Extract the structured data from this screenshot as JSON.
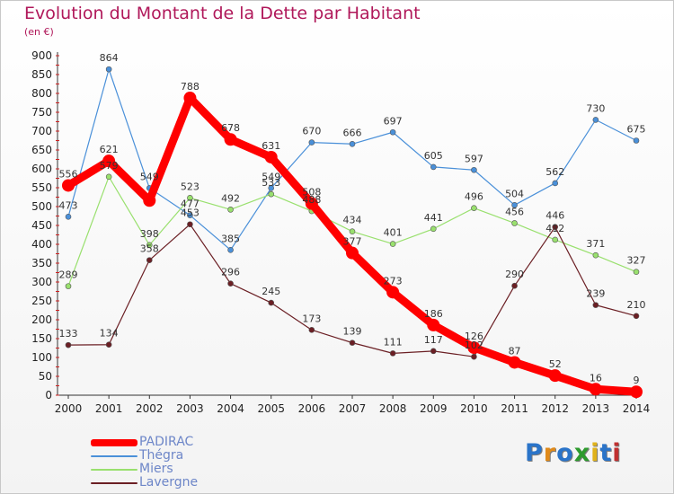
{
  "title": "Evolution du Montant de la Dette par Habitant",
  "subtitle": "(en €)",
  "logo": {
    "text": "Proxiti",
    "colors": [
      "#2a74c9",
      "#e08a1a",
      "#2a74c9",
      "#2e9b2e",
      "#e0b21a",
      "#2a74c9",
      "#c03030"
    ]
  },
  "chart_data": {
    "type": "line",
    "x": [
      "2000",
      "2001",
      "2002",
      "2003",
      "2004",
      "2005",
      "2006",
      "2007",
      "2008",
      "2009",
      "2010",
      "2011",
      "2012",
      "2013",
      "2014"
    ],
    "ylim": [
      0,
      900
    ],
    "yticks": [
      0,
      50,
      100,
      150,
      200,
      250,
      300,
      350,
      400,
      450,
      500,
      550,
      600,
      650,
      700,
      750,
      800,
      850,
      900
    ],
    "grid": false,
    "legend": "bottom-left",
    "series": [
      {
        "name": "PADIRAC",
        "color": "#ff0000",
        "width": 9,
        "marker": 7,
        "values": [
          556,
          621,
          516,
          788,
          678,
          631,
          508,
          377,
          273,
          186,
          126,
          87,
          52,
          16,
          9
        ],
        "labels": [
          "556",
          "621",
          "",
          "788",
          "678",
          "631",
          "508",
          "377",
          "273",
          "186",
          "126",
          "87",
          "52",
          "16",
          "9"
        ]
      },
      {
        "name": "Thégra",
        "color": "#4a90d9",
        "width": 1.2,
        "marker": 3,
        "values": [
          473,
          864,
          549,
          477,
          385,
          549,
          670,
          666,
          697,
          605,
          597,
          504,
          562,
          730,
          675
        ],
        "labels": [
          "473",
          "864",
          "549",
          "477",
          "385",
          "549",
          "670",
          "666",
          "697",
          "605",
          "597",
          "504",
          "562",
          "730",
          "675"
        ]
      },
      {
        "name": "Miers",
        "color": "#99e06e",
        "width": 1.2,
        "marker": 3,
        "values": [
          289,
          579,
          398,
          523,
          492,
          533,
          488,
          434,
          401,
          441,
          496,
          456,
          412,
          371,
          327
        ],
        "labels": [
          "289",
          "579",
          "398",
          "523",
          "492",
          "533",
          "488",
          "434",
          "401",
          "441",
          "496",
          "456",
          "412",
          "371",
          "327"
        ]
      },
      {
        "name": "Lavergne",
        "color": "#6b1f24",
        "width": 1.2,
        "marker": 3,
        "values": [
          133,
          134,
          358,
          453,
          296,
          245,
          173,
          139,
          111,
          117,
          102,
          290,
          446,
          239,
          210
        ],
        "labels": [
          "133",
          "134",
          "358",
          "453",
          "296",
          "245",
          "173",
          "139",
          "111",
          "117",
          "102",
          "290",
          "446",
          "239",
          "210"
        ]
      }
    ]
  }
}
